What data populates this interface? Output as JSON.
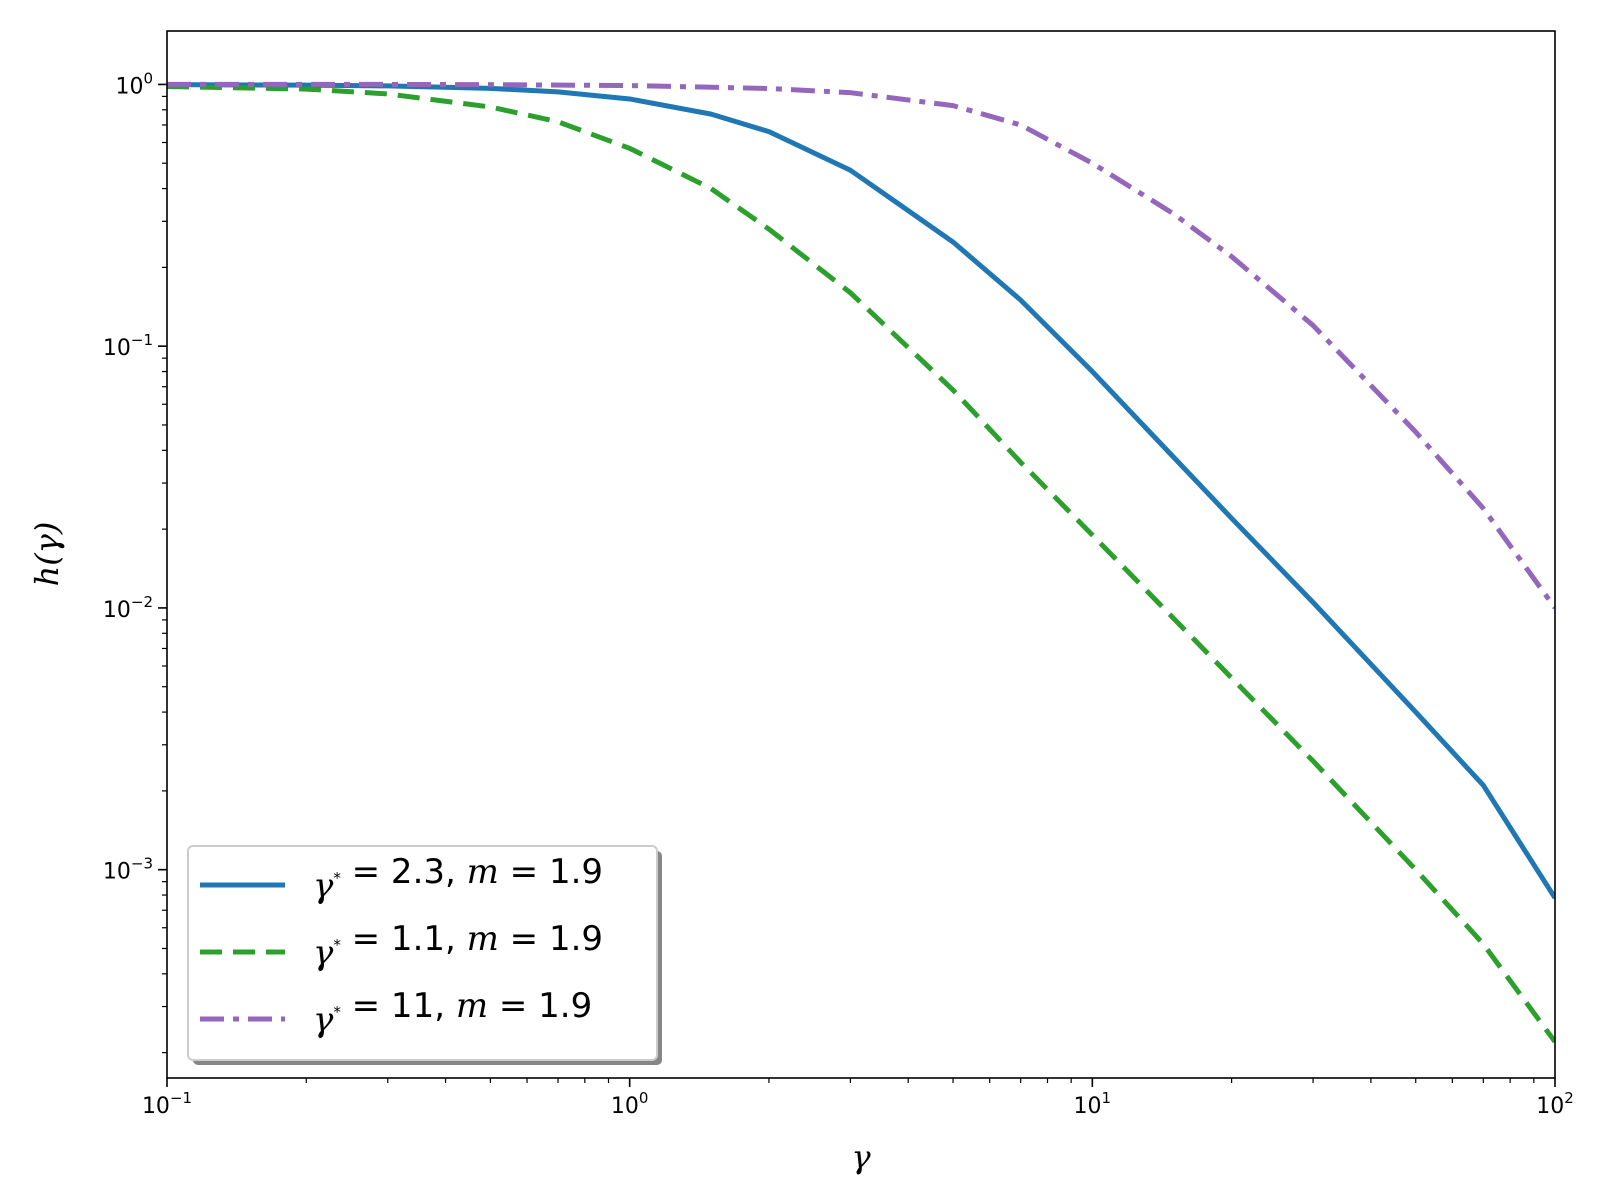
{
  "chart_data": {
    "type": "line",
    "title": "",
    "xlabel": "γ",
    "ylabel": "h(γ)",
    "xscale": "log",
    "yscale": "log",
    "xlim": [
      0.1,
      100
    ],
    "ylim": [
      0.00016,
      1.6
    ],
    "grid": false,
    "legend_position": "lower-left",
    "x_ticks": [
      {
        "value": 0.1,
        "base": "10",
        "exp": "−1"
      },
      {
        "value": 1,
        "base": "10",
        "exp": "0"
      },
      {
        "value": 10,
        "base": "10",
        "exp": "1"
      },
      {
        "value": 100,
        "base": "10",
        "exp": "2"
      }
    ],
    "y_ticks": [
      {
        "value": 1,
        "base": "10",
        "exp": "0"
      },
      {
        "value": 0.1,
        "base": "10",
        "exp": "−1"
      },
      {
        "value": 0.01,
        "base": "10",
        "exp": "−2"
      },
      {
        "value": 0.001,
        "base": "10",
        "exp": "−3"
      }
    ],
    "series": [
      {
        "name": "γ* = 2.3, m = 1.9",
        "legend_parts": {
          "gamma_value": "2.3,",
          "m_value": "1.9"
        },
        "color": "#1f77b4",
        "style": "solid",
        "x": [
          0.1,
          0.2,
          0.3,
          0.5,
          0.7,
          1,
          1.5,
          2,
          3,
          5,
          7,
          10,
          20,
          30,
          50,
          70,
          100
        ],
        "y": [
          0.998,
          0.994,
          0.987,
          0.966,
          0.937,
          0.88,
          0.77,
          0.66,
          0.47,
          0.25,
          0.15,
          0.08,
          0.022,
          0.0105,
          0.004,
          0.0021,
          0.00078
        ]
      },
      {
        "name": "γ* = 1.1, m = 1.9",
        "legend_parts": {
          "gamma_value": "1.1,",
          "m_value": "1.9"
        },
        "color": "#2ca02c",
        "style": "dashed",
        "x": [
          0.1,
          0.2,
          0.3,
          0.5,
          0.7,
          1,
          1.5,
          2,
          3,
          5,
          7,
          10,
          20,
          30,
          50,
          70,
          100
        ],
        "y": [
          0.982,
          0.96,
          0.92,
          0.82,
          0.72,
          0.57,
          0.4,
          0.28,
          0.16,
          0.068,
          0.036,
          0.019,
          0.0054,
          0.0026,
          0.001,
          0.00052,
          0.00022
        ]
      },
      {
        "name": "γ* = 11, m = 1.9",
        "legend_parts": {
          "gamma_value": "11,",
          "m_value": "1.9"
        },
        "color": "#9467bd",
        "style": "dashdot",
        "x": [
          0.1,
          0.3,
          0.5,
          1,
          2,
          3,
          5,
          7,
          10,
          15,
          20,
          30,
          50,
          70,
          100
        ],
        "y": [
          1.0,
          1.0,
          0.998,
          0.99,
          0.965,
          0.93,
          0.83,
          0.7,
          0.5,
          0.32,
          0.22,
          0.12,
          0.047,
          0.024,
          0.01
        ]
      }
    ]
  }
}
